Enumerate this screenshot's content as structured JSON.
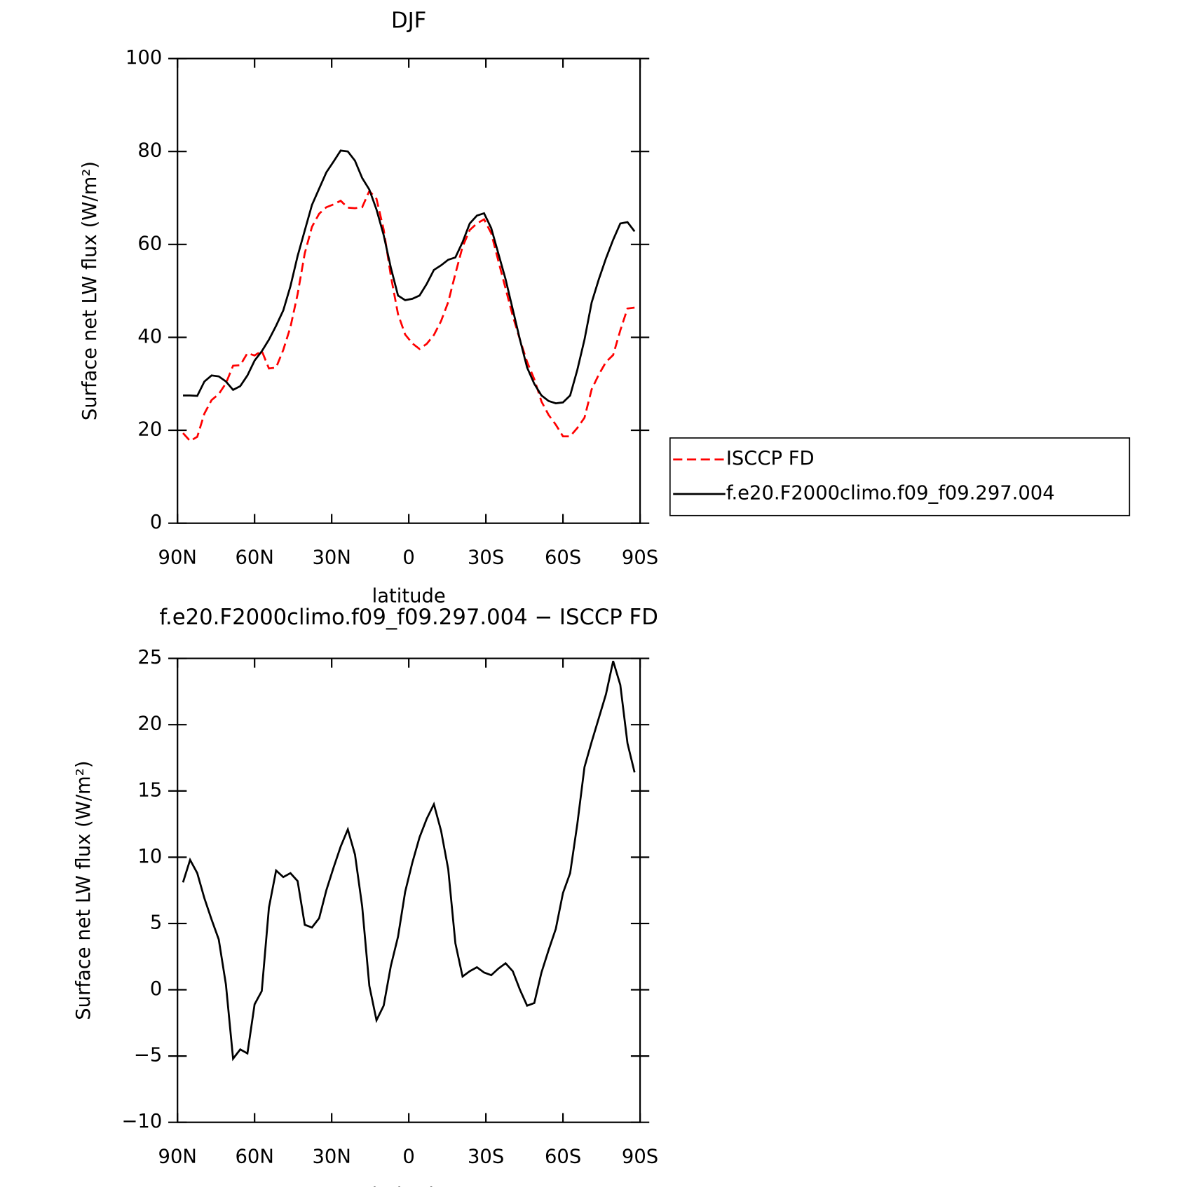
{
  "chart_data": [
    {
      "type": "line",
      "title": "DJF",
      "xlabel": "latitude",
      "ylabel": "Surface net LW flux (W/m²)",
      "x": [
        87.86,
        85.1,
        82.31,
        79.53,
        76.74,
        73.95,
        71.16,
        68.37,
        65.58,
        62.79,
        60.0,
        57.21,
        54.42,
        51.63,
        48.84,
        46.05,
        43.26,
        40.47,
        37.67,
        34.88,
        32.09,
        29.3,
        26.51,
        23.72,
        20.93,
        18.14,
        15.35,
        12.56,
        9.77,
        6.98,
        4.19,
        1.4,
        -1.4,
        -4.19,
        -6.98,
        -9.77,
        -12.56,
        -15.35,
        -18.14,
        -20.93,
        -23.72,
        -26.51,
        -29.3,
        -32.09,
        -34.88,
        -37.67,
        -40.47,
        -43.26,
        -46.05,
        -48.84,
        -51.63,
        -54.42,
        -57.21,
        -60.0,
        -62.79,
        -65.58,
        -68.37,
        -71.16,
        -73.95,
        -76.74,
        -79.53,
        -82.31,
        -85.1,
        -87.86
      ],
      "xlim": [
        90,
        -90
      ],
      "xticks": [
        {
          "value": 90,
          "label": "90N"
        },
        {
          "value": 60,
          "label": "60N"
        },
        {
          "value": 30,
          "label": "30N"
        },
        0,
        {
          "value": -30,
          "label": "30S"
        },
        {
          "value": -60,
          "label": "60S"
        },
        {
          "value": -90,
          "label": "90S"
        }
      ],
      "ylim": [
        0,
        100
      ],
      "yticks": [
        0,
        20,
        40,
        60,
        80,
        100
      ],
      "legend": "right",
      "series": [
        {
          "name": "ISCCP FD",
          "color": "#ff0000",
          "line_style": "dashed",
          "values": [
            19.4,
            17.7,
            18.6,
            23.6,
            26.5,
            27.8,
            30.1,
            33.9,
            34.0,
            36.6,
            36.1,
            37.1,
            33.3,
            33.5,
            37.3,
            42.2,
            49.3,
            58.1,
            63.8,
            66.6,
            68.0,
            68.6,
            69.4,
            67.9,
            67.8,
            68.0,
            71.5,
            69.8,
            63.2,
            53.2,
            45.0,
            40.6,
            38.7,
            37.5,
            38.6,
            40.5,
            43.5,
            47.6,
            53.7,
            59.5,
            63.1,
            64.5,
            65.4,
            62.4,
            56.4,
            50.5,
            44.6,
            39.5,
            34.7,
            31.0,
            26.2,
            23.3,
            21.2,
            18.7,
            18.7,
            20.5,
            22.7,
            28.8,
            32.0,
            34.7,
            36.2,
            41.5,
            46.2,
            46.4
          ]
        },
        {
          "name": "f.e20.F2000climo.f09_f09.297.004",
          "color": "#000000",
          "line_style": "solid",
          "values": [
            27.5,
            27.5,
            27.4,
            30.5,
            31.8,
            31.6,
            30.5,
            28.7,
            29.5,
            31.8,
            35.0,
            37.0,
            39.5,
            42.5,
            45.8,
            51.0,
            57.5,
            63.0,
            68.5,
            72.0,
            75.5,
            77.8,
            80.2,
            80.0,
            78.0,
            74.3,
            71.8,
            67.5,
            62.0,
            55.0,
            49.0,
            48.0,
            48.3,
            49.0,
            51.5,
            54.5,
            55.5,
            56.7,
            57.2,
            60.5,
            64.5,
            66.2,
            66.7,
            63.5,
            58.0,
            52.5,
            46.0,
            39.5,
            33.5,
            30.0,
            27.5,
            26.3,
            25.8,
            26.0,
            27.5,
            33.0,
            39.5,
            47.5,
            52.5,
            57.0,
            61.0,
            64.5,
            64.8,
            62.8
          ]
        }
      ]
    },
    {
      "type": "line",
      "title": "f.e20.F2000climo.f09_f09.297.004 − ISCCP FD",
      "xlabel": "latitude",
      "ylabel": "Surface net LW flux (W/m²)",
      "x": [
        87.86,
        85.1,
        82.31,
        79.53,
        76.74,
        73.95,
        71.16,
        68.37,
        65.58,
        62.79,
        60.0,
        57.21,
        54.42,
        51.63,
        48.84,
        46.05,
        43.26,
        40.47,
        37.67,
        34.88,
        32.09,
        29.3,
        26.51,
        23.72,
        20.93,
        18.14,
        15.35,
        12.56,
        9.77,
        6.98,
        4.19,
        1.4,
        -1.4,
        -4.19,
        -6.98,
        -9.77,
        -12.56,
        -15.35,
        -18.14,
        -20.93,
        -23.72,
        -26.51,
        -29.3,
        -32.09,
        -34.88,
        -37.67,
        -40.47,
        -43.26,
        -46.05,
        -48.84,
        -51.63,
        -54.42,
        -57.21,
        -60.0,
        -62.79,
        -65.58,
        -68.37,
        -71.16,
        -73.95,
        -76.74,
        -79.53,
        -82.31,
        -85.1,
        -87.86
      ],
      "xlim": [
        90,
        -90
      ],
      "xticks": [
        {
          "value": 90,
          "label": "90N"
        },
        {
          "value": 60,
          "label": "60N"
        },
        {
          "value": 30,
          "label": "30N"
        },
        0,
        {
          "value": -30,
          "label": "30S"
        },
        {
          "value": -60,
          "label": "60S"
        },
        {
          "value": -90,
          "label": "90S"
        }
      ],
      "ylim": [
        -10,
        25
      ],
      "yticks": [
        {
          "value": -10,
          "label": "−10"
        },
        {
          "value": -5,
          "label": "−5"
        },
        0,
        5,
        10,
        15,
        20,
        25
      ],
      "series": [
        {
          "color": "#000000",
          "line_style": "solid",
          "values": [
            8.1,
            9.8,
            8.8,
            6.9,
            5.3,
            3.8,
            0.4,
            -5.2,
            -4.5,
            -4.8,
            -1.1,
            -0.1,
            6.2,
            9.0,
            8.5,
            8.8,
            8.2,
            4.9,
            4.7,
            5.4,
            7.5,
            9.2,
            10.8,
            12.1,
            10.2,
            6.3,
            0.3,
            -2.3,
            -1.2,
            1.8,
            4.0,
            7.4,
            9.6,
            11.5,
            12.9,
            14.0,
            12.0,
            9.1,
            3.5,
            1.0,
            1.4,
            1.7,
            1.3,
            1.1,
            1.6,
            2.0,
            1.4,
            0.0,
            -1.2,
            -1.0,
            1.3,
            3.0,
            4.6,
            7.3,
            8.8,
            12.5,
            16.8,
            18.7,
            20.5,
            22.3,
            24.8,
            23.0,
            18.6,
            16.4
          ]
        }
      ]
    }
  ]
}
